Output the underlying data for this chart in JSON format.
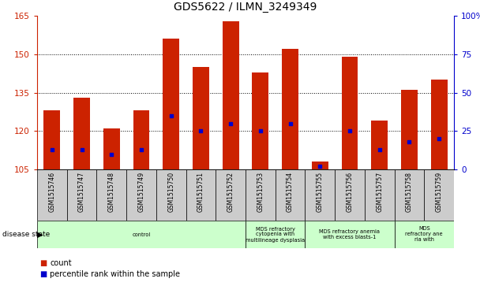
{
  "title": "GDS5622 / ILMN_3249349",
  "samples": [
    "GSM1515746",
    "GSM1515747",
    "GSM1515748",
    "GSM1515749",
    "GSM1515750",
    "GSM1515751",
    "GSM1515752",
    "GSM1515753",
    "GSM1515754",
    "GSM1515755",
    "GSM1515756",
    "GSM1515757",
    "GSM1515758",
    "GSM1515759"
  ],
  "counts": [
    128,
    133,
    121,
    128,
    156,
    145,
    163,
    143,
    152,
    108,
    149,
    124,
    136,
    140
  ],
  "percentiles": [
    13,
    13,
    10,
    13,
    35,
    25,
    30,
    25,
    30,
    2,
    25,
    13,
    18,
    20
  ],
  "ylim_left": [
    105,
    165
  ],
  "ylim_right": [
    0,
    100
  ],
  "yticks_left": [
    105,
    120,
    135,
    150,
    165
  ],
  "yticks_right": [
    0,
    25,
    50,
    75,
    100
  ],
  "bar_color": "#cc2200",
  "dot_color": "#0000cc",
  "bar_width": 0.55,
  "tick_bg_color": "#cccccc",
  "title_fontsize": 10,
  "axis_color_left": "#cc2200",
  "axis_color_right": "#0000cc",
  "grid_yticks": [
    120,
    135,
    150
  ],
  "disease_groups": [
    {
      "start": 0,
      "end": 7,
      "label": "control",
      "color": "#ccffcc"
    },
    {
      "start": 7,
      "end": 9,
      "label": "MDS refractory\ncytopenia with\nmultilineage dysplasia",
      "color": "#ccffcc"
    },
    {
      "start": 9,
      "end": 12,
      "label": "MDS refractory anemia\nwith excess blasts-1",
      "color": "#ccffcc"
    },
    {
      "start": 12,
      "end": 14,
      "label": "MDS\nrefractory ane\nria with",
      "color": "#ccffcc"
    }
  ],
  "fig_width": 6.08,
  "fig_height": 3.63,
  "dpi": 100
}
